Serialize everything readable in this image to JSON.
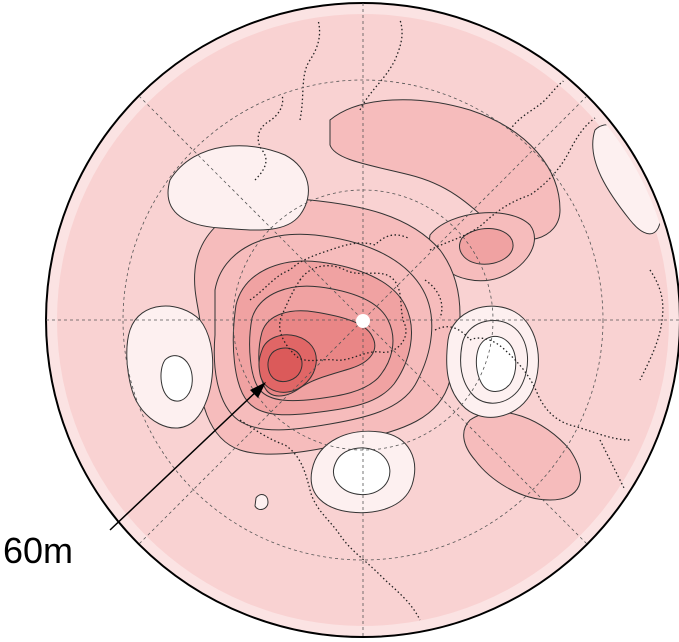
{
  "figure": {
    "projection": "north-polar-stereographic",
    "annotation": {
      "text": "60m"
    },
    "colors": {
      "background_fill": "#f9d2d2",
      "outer_ring": "#fbe3e3",
      "negative_fill": "#fdf0f0",
      "positive_light": "#f6bcbc",
      "positive_mid": "#f0a2a2",
      "positive_strong": "#e98686",
      "positive_max": "#e06666",
      "contour_line": "#333333",
      "coastline": "#222222",
      "gridline": "#555555"
    }
  }
}
